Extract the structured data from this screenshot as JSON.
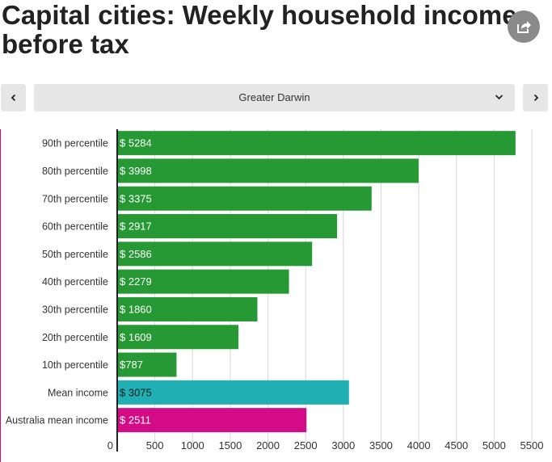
{
  "title": "Capital cities: Weekly household income before tax",
  "share": {
    "icon": "share-icon"
  },
  "nav": {
    "prev_icon": "chevron-left-icon",
    "next_icon": "chevron-right-icon",
    "selected_region": "Greater Darwin",
    "dropdown_icon": "chevron-down-icon"
  },
  "colors": {
    "percentile_bar": "#269935",
    "mean_bar": "#20b0b3",
    "australia_bar": "#d40b86",
    "grid": "#d8d8d8"
  },
  "chart_data": {
    "type": "bar",
    "orientation": "horizontal",
    "categories": [
      "90th percentile",
      "80th percentile",
      "70th percentile",
      "60th percentile",
      "50th percentile",
      "40th percentile",
      "30th percentile",
      "20th percentile",
      "10th percentile",
      "Mean income",
      "Australia mean income"
    ],
    "values": [
      5284,
      3998,
      3375,
      2917,
      2586,
      2279,
      1860,
      1609,
      787,
      3075,
      2511
    ],
    "value_labels": [
      "$ 5284",
      "$ 3998",
      "$ 3375",
      "$ 2917",
      "$ 2586",
      "$ 2279",
      "$ 1860",
      "$ 1609",
      "$787",
      "$ 3075",
      "$ 2511"
    ],
    "bar_colors": [
      "#269935",
      "#269935",
      "#269935",
      "#269935",
      "#269935",
      "#269935",
      "#269935",
      "#269935",
      "#269935",
      "#20b0b3",
      "#d40b86"
    ],
    "label_colors": [
      "#ffffff",
      "#ffffff",
      "#ffffff",
      "#ffffff",
      "#ffffff",
      "#ffffff",
      "#ffffff",
      "#ffffff",
      "#ffffff",
      "#1a1a1a",
      "#ffffff"
    ],
    "xlim": [
      0,
      5500
    ],
    "xticks": [
      0,
      500,
      1000,
      1500,
      2000,
      2500,
      3000,
      3500,
      4000,
      4500,
      5000,
      5500
    ],
    "grid": true,
    "title": "",
    "xlabel": "",
    "ylabel": ""
  }
}
